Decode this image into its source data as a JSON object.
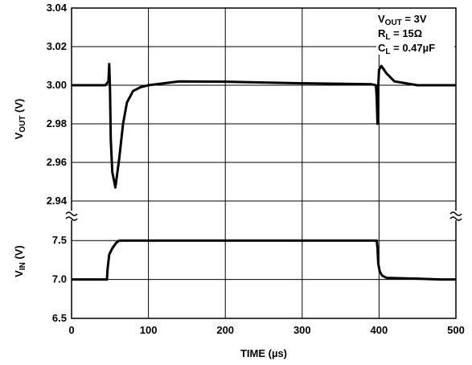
{
  "chart_data": {
    "type": "line",
    "xlabel": "TIME (µs)",
    "x_ticks": [
      "0",
      "100",
      "200",
      "300",
      "400",
      "500"
    ],
    "xlim": [
      0,
      500
    ],
    "grid": true,
    "panels": [
      {
        "ylabel": {
          "main": "V",
          "sub": "OUT",
          "unit": " (V)"
        },
        "ylim": [
          2.94,
          3.04
        ],
        "y_ticks": [
          "2.94",
          "2.96",
          "2.98",
          "3.00",
          "3.02",
          "3.04"
        ],
        "series": [
          {
            "x": [
              0,
              44,
              48,
              49,
              50,
              51,
              53,
              57,
              62,
              67,
              72,
              80,
              90,
              100,
              140,
              200,
              300,
              390,
              396,
              397,
              398,
              399,
              400,
              403,
              410,
              420,
              450,
              500
            ],
            "y": [
              3.0,
              3.0,
              3.002,
              3.011,
              2.998,
              2.972,
              2.955,
              2.947,
              2.962,
              2.98,
              2.991,
              2.997,
              2.999,
              3.0,
              3.002,
              3.0018,
              3.001,
              3.0005,
              3.0,
              2.993,
              2.98,
              3.0,
              3.008,
              3.01,
              3.006,
              3.002,
              3.0,
              3.0
            ]
          }
        ]
      },
      {
        "ylabel": {
          "main": "V",
          "sub": "IN",
          "unit": " (V)"
        },
        "ylim": [
          6.5,
          7.75
        ],
        "y_ticks": [
          "6.5",
          "7.0",
          "7.5"
        ],
        "series": [
          {
            "x": [
              0,
              46,
              47,
              49,
              53,
              58,
              62,
              100,
              300,
              397,
              398,
              399,
              401,
              404,
              410,
              450,
              480,
              500
            ],
            "y": [
              7.0,
              7.0,
              7.15,
              7.32,
              7.4,
              7.47,
              7.5,
              7.5,
              7.5,
              7.5,
              7.4,
              7.2,
              7.1,
              7.05,
              7.02,
              7.01,
              7.0,
              7.0
            ]
          }
        ]
      }
    ],
    "annotation": {
      "line1": {
        "main": "V",
        "sub": "OUT",
        "rest": " = 3V"
      },
      "line2": {
        "main": "R",
        "sub": "L",
        "rest": " = 15Ω"
      },
      "line3": {
        "main": "C",
        "sub": "L",
        "rest": " = 0.47µF"
      }
    }
  }
}
